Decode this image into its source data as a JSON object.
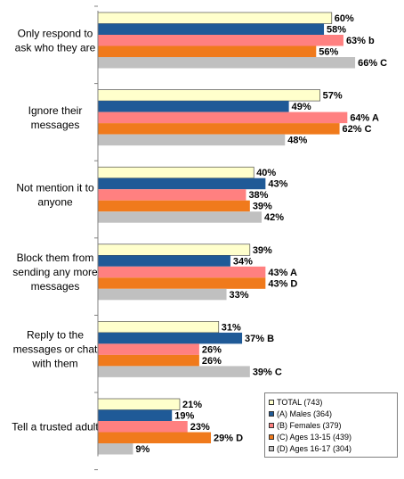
{
  "chart_data": {
    "type": "bar",
    "orientation": "horizontal",
    "xlim": [
      0,
      70
    ],
    "categories": [
      [
        "Only respond to",
        "ask who they are"
      ],
      [
        "Ignore their",
        "messages"
      ],
      [
        "Not mention it to",
        "anyone"
      ],
      [
        "Block them from",
        "sending any more",
        "messages"
      ],
      [
        "Reply to the",
        "messages or chat",
        "with them"
      ],
      [
        "Tell a trusted adult"
      ]
    ],
    "series": [
      {
        "name": "TOTAL (743)",
        "color": "#ffffcc",
        "values": [
          60,
          57,
          40,
          39,
          31,
          21
        ],
        "annotations": [
          "",
          "",
          "",
          "",
          "",
          ""
        ]
      },
      {
        "name": "(A) Males (364)",
        "color": "#1f5a97",
        "values": [
          58,
          49,
          43,
          34,
          37,
          19
        ],
        "annotations": [
          "",
          "",
          "",
          "",
          "B",
          ""
        ]
      },
      {
        "name": "(B) Females (379)",
        "color": "#ff8080",
        "values": [
          63,
          64,
          38,
          43,
          26,
          23
        ],
        "annotations": [
          "b",
          "A",
          "",
          "A",
          "",
          ""
        ]
      },
      {
        "name": "(C) Ages 13-15 (439)",
        "color": "#f07a1c",
        "values": [
          56,
          62,
          39,
          43,
          26,
          29
        ],
        "annotations": [
          "",
          "C",
          "",
          "D",
          "",
          "D"
        ]
      },
      {
        "name": "(D) Ages 16-17 (304)",
        "color": "#c0c0c0",
        "values": [
          66,
          48,
          42,
          33,
          39,
          9
        ],
        "annotations": [
          "C",
          "",
          "",
          "",
          "C",
          ""
        ]
      }
    ],
    "value_suffix": "%",
    "legend_position": "bottom-right",
    "grid": false
  }
}
